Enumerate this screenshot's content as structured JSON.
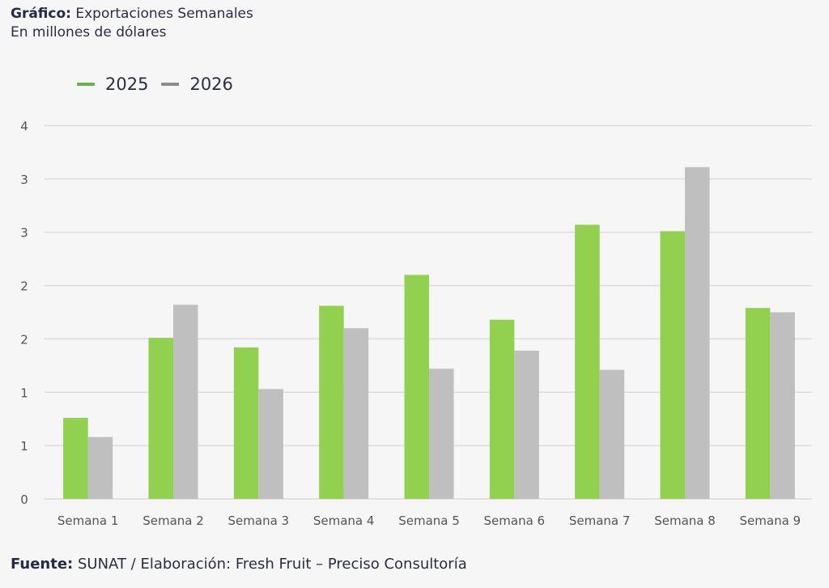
{
  "title": {
    "bold": "Gráfico:",
    "text": "Exportaciones Semanales",
    "subtitle": "En millones de dólares"
  },
  "footer": {
    "bold": "Fuente:",
    "text": "SUNAT / Elaboración: Fresh Fruit – Preciso Consultoría"
  },
  "chart_data": {
    "type": "bar",
    "title": "Exportaciones Semanales",
    "subtitle": "En millones de dólares",
    "xlabel": "",
    "ylabel": "",
    "categories": [
      "Semana 1",
      "Semana 2",
      "Semana 3",
      "Semana 4",
      "Semana 5",
      "Semana 6",
      "Semana 7",
      "Semana 8",
      "Semana 9"
    ],
    "series": [
      {
        "name": "2025",
        "color": "#92d050",
        "values": [
          0.76,
          1.51,
          1.42,
          1.81,
          2.1,
          1.68,
          2.57,
          2.51,
          1.79
        ]
      },
      {
        "name": "2026",
        "color": "#bfbfbf",
        "values": [
          0.58,
          1.82,
          1.03,
          1.6,
          1.22,
          1.39,
          1.21,
          3.11,
          1.75
        ]
      }
    ],
    "ylim": [
      0,
      3.5
    ],
    "yticks": [
      0,
      0.5,
      1,
      1.5,
      2,
      2.5,
      3,
      3.5
    ],
    "ytick_labels": [
      "0",
      "1",
      "1",
      "2",
      "2",
      "3",
      "3",
      "4"
    ],
    "grid": true,
    "legend": "top-left"
  }
}
